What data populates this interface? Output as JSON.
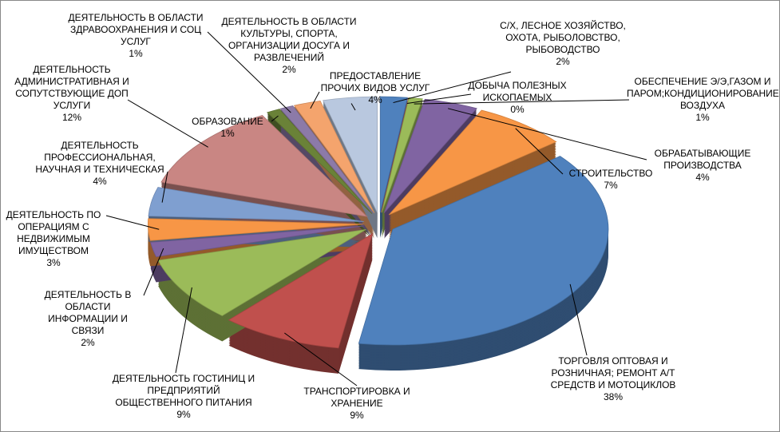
{
  "chart_data": {
    "type": "pie",
    "categories": [
      "С/Х, ЛЕСНОЕ ХОЗЯЙСТВО, ОХОТА, РЫБОЛОВСТВО, РЫБОВОДСТВО",
      "ДОБЫЧА ПОЛЕЗНЫХ ИСКОПАЕМЫХ",
      "ОБЕСПЕЧЕНИЕ Э/Э,ГАЗОМ И ПАРОМ;КОНДИЦИОНИРОВАНИЕ ВОЗДУХА",
      "ОБРАБАТЫВАЮЩИЕ ПРОИЗВОДСТВА",
      "СТРОИТЕЛЬСТВО",
      "ТОРГОВЛЯ ОПТОВАЯ И РОЗНИЧНАЯ; РЕМОНТ А/Т СРЕДСТВ И МОТОЦИКЛОВ",
      "ТРАНСПОРТИРОВКА И ХРАНЕНИЕ",
      "ДЕЯТЕЛЬНОСТЬ ГОСТИНИЦ И ПРЕДПРИЯТИЙ ОБЩЕСТВЕННОГО ПИТАНИЯ",
      "ДЕЯТЕЛЬНОСТЬ В ОБЛАСТИ ИНФОРМАЦИИ И СВЯЗИ",
      "ДЕЯТЕЛЬНОСТЬ ПО ОПЕРАЦИЯМ С НЕДВИЖИМЫМ ИМУЩЕСТВОМ",
      "ДЕЯТЕЛЬНОСТЬ ПРОФЕССИОНАЛЬНАЯ, НАУЧНАЯ И ТЕХНИЧЕСКАЯ",
      "ДЕЯТЕЛЬНОСТЬ АДМИНИСТРАТИВНАЯ И СОПУТСТВУЮЩИЕ ДОП УСЛУГИ",
      "ОБРАЗОВАНИЕ",
      "ДЕЯТЕЛЬНОСТЬ В ОБЛАСТИ ЗДРАВООХРАНЕНИЯ И СОЦ УСЛУГ",
      "ДЕЯТЕЛЬНОСТЬ В ОБЛАСТИ КУЛЬТУРЫ, СПОРТА, ОРГАНИЗАЦИИ ДОСУГА И РАЗВЛЕЧЕНИЙ",
      "ПРЕДОСТАВЛЕНИЕ ПРОЧИХ ВИДОВ УСЛУГ"
    ],
    "values": [
      2,
      0,
      1,
      4,
      7,
      38,
      9,
      9,
      2,
      3,
      4,
      12,
      1,
      1,
      2,
      4
    ],
    "value_labels": [
      "2%",
      "0%",
      "1%",
      "4%",
      "7%",
      "38%",
      "9%",
      "9%",
      "2%",
      "3%",
      "4%",
      "12%",
      "1%",
      "1%",
      "2%",
      "4%"
    ],
    "colors": [
      "#4f81bd",
      "#c0504d",
      "#9bbb59",
      "#8064a2",
      "#f79646",
      "#4f81bd",
      "#c0504d",
      "#9bbb59",
      "#8064a2",
      "#f79646",
      "#7f9fd0",
      "#c98683",
      "#6a8238",
      "#8c7aa8",
      "#f4a46d",
      "#b9c8df"
    ]
  }
}
